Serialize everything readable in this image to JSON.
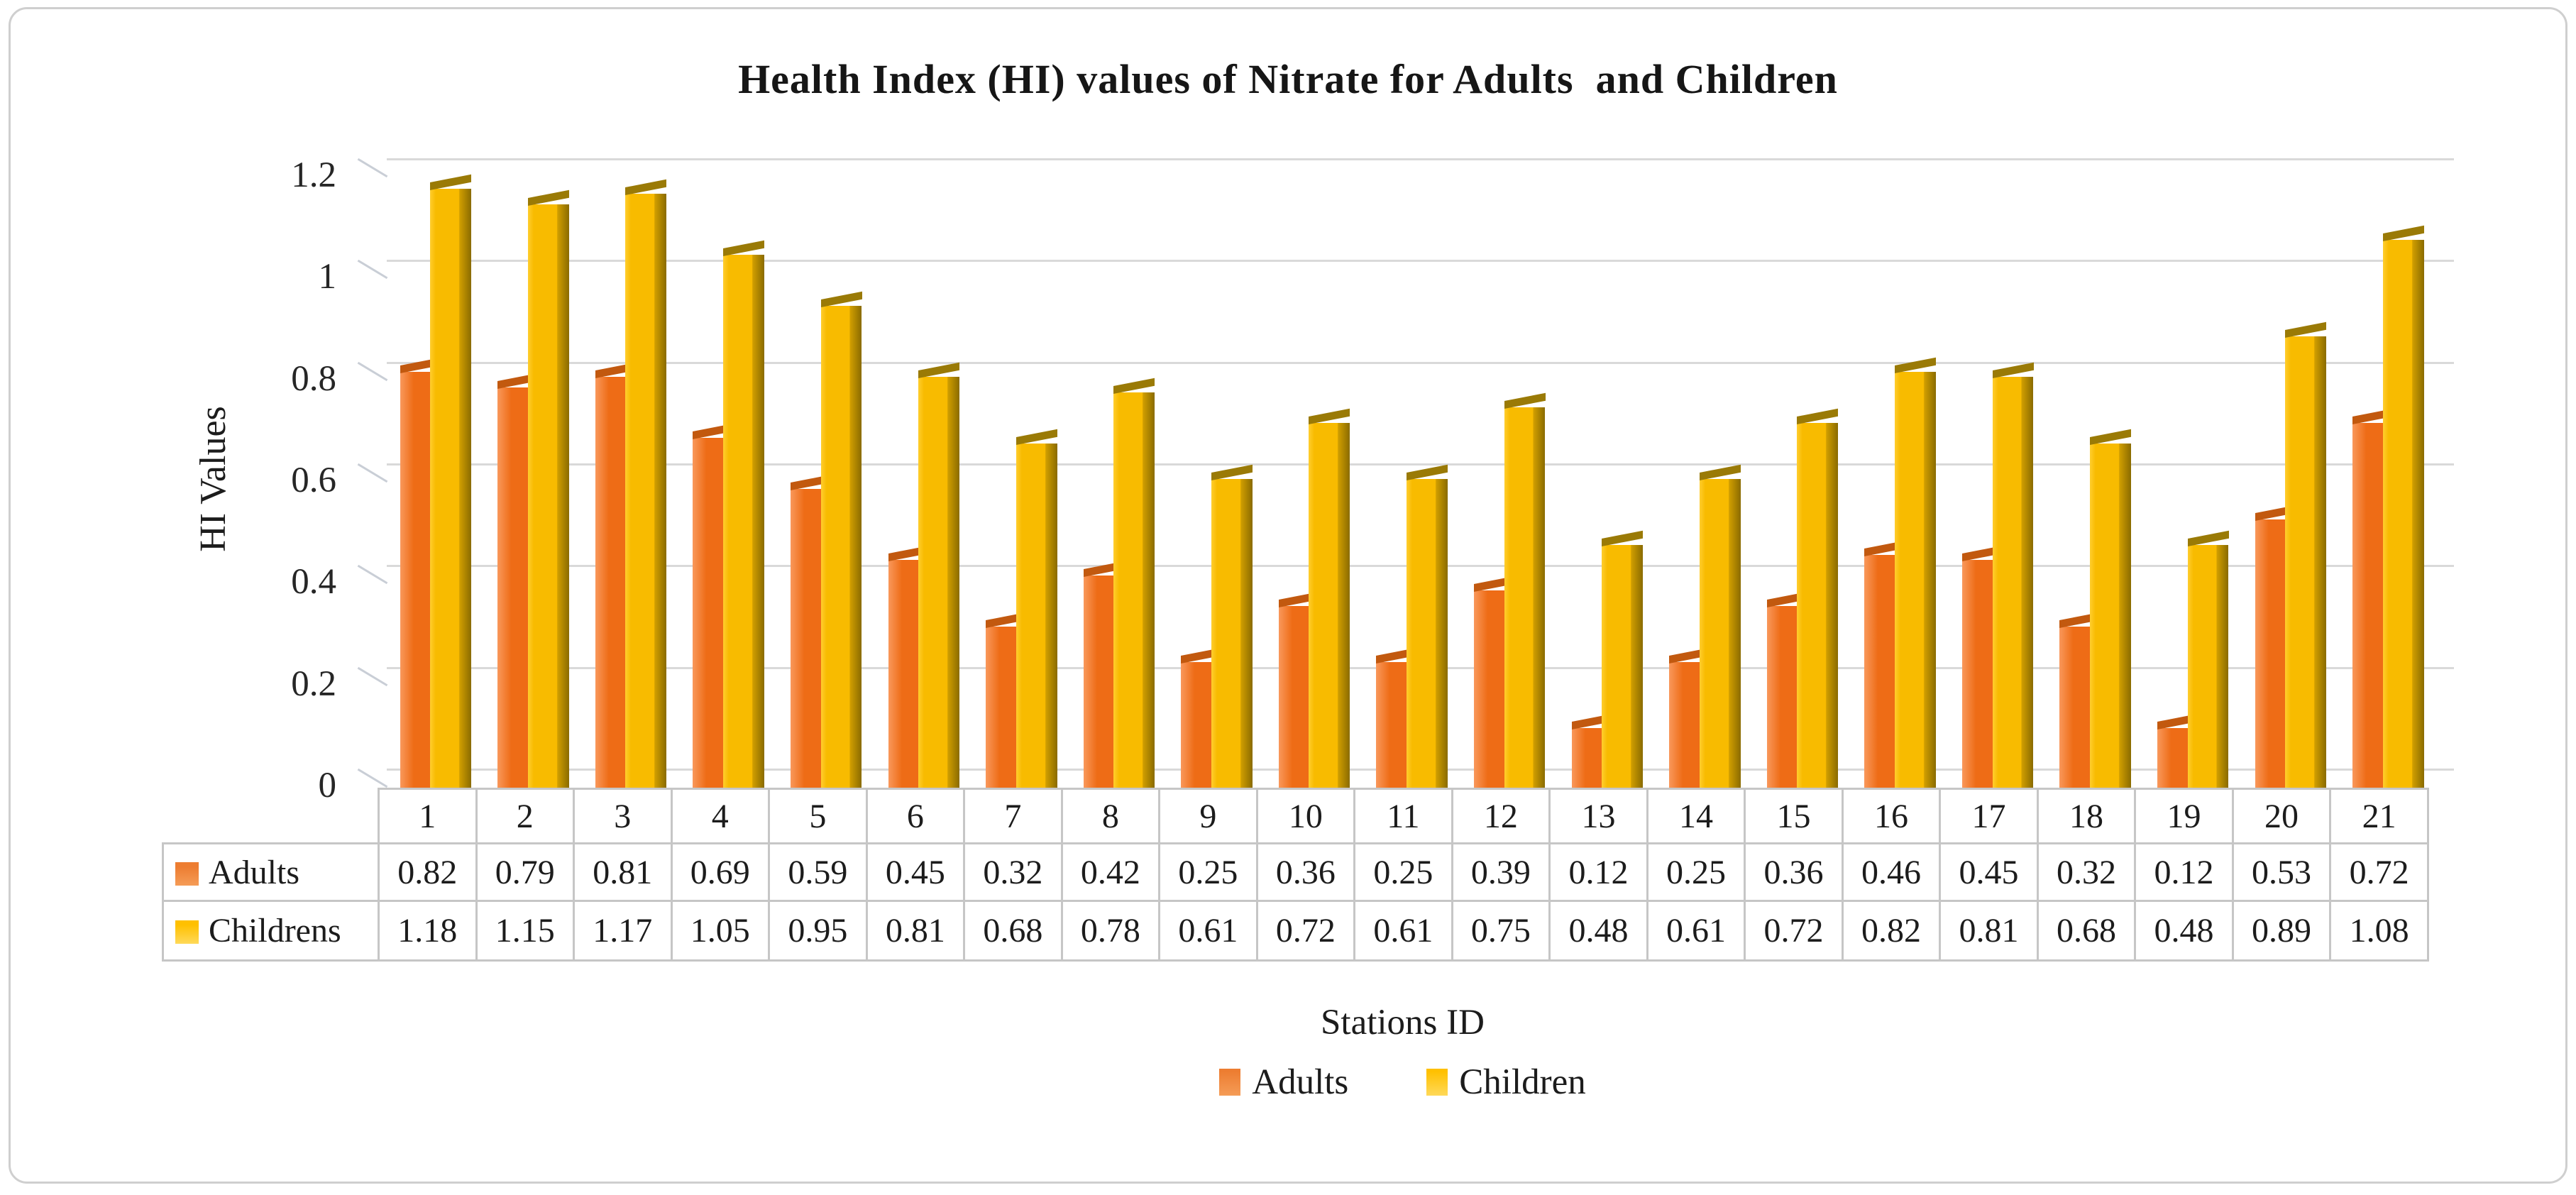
{
  "chart_data": {
    "type": "bar",
    "style": "3d-clustered-column",
    "title": "Health Index (HI) values of Nitrate for Adults  and Children",
    "xlabel": "Stations ID",
    "ylabel": "HI Values",
    "categories": [
      "1",
      "2",
      "3",
      "4",
      "5",
      "6",
      "7",
      "8",
      "9",
      "10",
      "11",
      "12",
      "13",
      "14",
      "15",
      "16",
      "17",
      "18",
      "19",
      "20",
      "21"
    ],
    "series": [
      {
        "name": "Adults",
        "table_label": "Adults",
        "values": [
          0.82,
          0.79,
          0.81,
          0.69,
          0.59,
          0.45,
          0.32,
          0.42,
          0.25,
          0.36,
          0.25,
          0.39,
          0.12,
          0.25,
          0.36,
          0.46,
          0.45,
          0.32,
          0.12,
          0.53,
          0.72
        ]
      },
      {
        "name": "Children",
        "table_label": "Childrens",
        "values": [
          1.18,
          1.15,
          1.17,
          1.05,
          0.95,
          0.81,
          0.68,
          0.78,
          0.61,
          0.72,
          0.61,
          0.75,
          0.48,
          0.61,
          0.72,
          0.82,
          0.81,
          0.68,
          0.48,
          0.89,
          1.08
        ]
      }
    ],
    "ylim": [
      0,
      1.2
    ],
    "ytick_labels": [
      "0",
      "0.2",
      "0.4",
      "0.6",
      "0.8",
      "1",
      "1.2"
    ],
    "grid": true,
    "legend_position": "bottom",
    "value_format": "2dp",
    "table_shown": true
  },
  "colors": {
    "adults_front": "#EE6C16",
    "adults_front_light": "#F9985B",
    "adults_top": "#C2590F",
    "children_front": "#F8BB00",
    "children_front_light": "#FFCD2E",
    "children_side_light": "#D09E00",
    "children_side_dark": "#8A6B00",
    "children_top": "#9A7A06",
    "adults_swatch": "#ED7D31",
    "adults_swatch_light": "#F59C57",
    "children_swatch": "#FFC000",
    "children_swatch_light": "#FFD95A",
    "gridline": "#D9D9D9",
    "table_border": "#C6C6C6",
    "frame_border": "#CFCFCF",
    "text": "#1C1C1C"
  }
}
